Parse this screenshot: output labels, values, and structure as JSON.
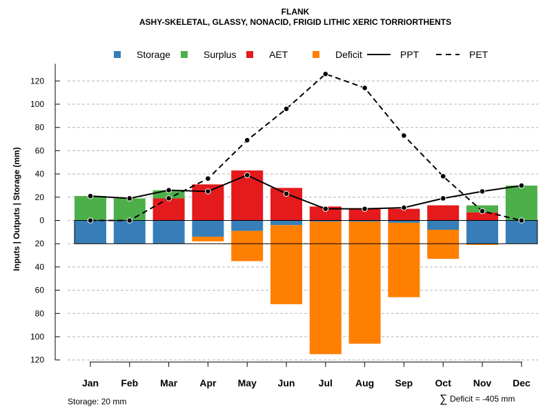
{
  "chart_data": {
    "type": "bar",
    "title": "FLANK",
    "subtitle": "ASHY-SKELETAL, GLASSY, NONACID, FRIGID LITHIC XERIC TORRIORTHENTS",
    "ylabel": "Inputs | Outputs | Storage    (mm)",
    "ylim": [
      -120,
      130
    ],
    "yticks": [
      120,
      100,
      80,
      60,
      40,
      20,
      0,
      -20,
      -40,
      -60,
      -80,
      -100,
      -120
    ],
    "ytick_labels": [
      "120",
      "100",
      "80",
      "60",
      "40",
      "20",
      "0",
      "20",
      "40",
      "60",
      "80",
      "100",
      "120"
    ],
    "grid": "horizontal dashed",
    "legend_position": "top",
    "categories": [
      "Jan",
      "Feb",
      "Mar",
      "Apr",
      "May",
      "Jun",
      "Jul",
      "Aug",
      "Sep",
      "Oct",
      "Nov",
      "Dec"
    ],
    "series": [
      {
        "name": "Storage",
        "kind": "bar-below",
        "color": "#377EB8",
        "values": [
          20,
          20,
          20,
          14,
          9,
          4,
          1,
          1,
          2,
          8,
          20,
          20
        ]
      },
      {
        "name": "Deficit",
        "kind": "bar-below",
        "color": "#FF7F00",
        "values": [
          0,
          0,
          0,
          4,
          26,
          68,
          114,
          105,
          64,
          25,
          1,
          0
        ]
      },
      {
        "name": "AET",
        "kind": "bar-above",
        "color": "#E41A1C",
        "values": [
          0,
          0,
          19,
          31,
          43,
          28,
          12,
          10,
          10,
          13,
          7,
          0
        ]
      },
      {
        "name": "Surplus",
        "kind": "bar-above",
        "color": "#4DAF4A",
        "values": [
          21,
          19,
          7,
          0,
          0,
          0,
          0,
          0,
          0,
          0,
          6,
          30
        ]
      },
      {
        "name": "PPT",
        "kind": "line-solid",
        "color": "#000000",
        "values": [
          21,
          19,
          26,
          25,
          39,
          23,
          10,
          10,
          11,
          19,
          25,
          30
        ]
      },
      {
        "name": "PET",
        "kind": "line-dashed",
        "color": "#000000",
        "values": [
          0,
          0,
          19,
          36,
          69,
          96,
          126,
          114,
          73,
          38,
          8,
          0
        ]
      }
    ],
    "storage_capacity": 20,
    "annotations": {
      "storage_note": "Storage: 20 mm",
      "deficit_symbol": "∑",
      "deficit_note": "Deficit = -405 mm"
    }
  },
  "legend": {
    "items": [
      {
        "label": "Storage",
        "symbol": "square",
        "color": "#377EB8"
      },
      {
        "label": "Surplus",
        "symbol": "square",
        "color": "#4DAF4A"
      },
      {
        "label": "AET",
        "symbol": "square",
        "color": "#E41A1C"
      },
      {
        "label": "Deficit",
        "symbol": "square",
        "color": "#FF7F00"
      },
      {
        "label": "PPT",
        "symbol": "solid-line",
        "color": "#000000"
      },
      {
        "label": "PET",
        "symbol": "dashed-line",
        "color": "#000000"
      }
    ]
  }
}
